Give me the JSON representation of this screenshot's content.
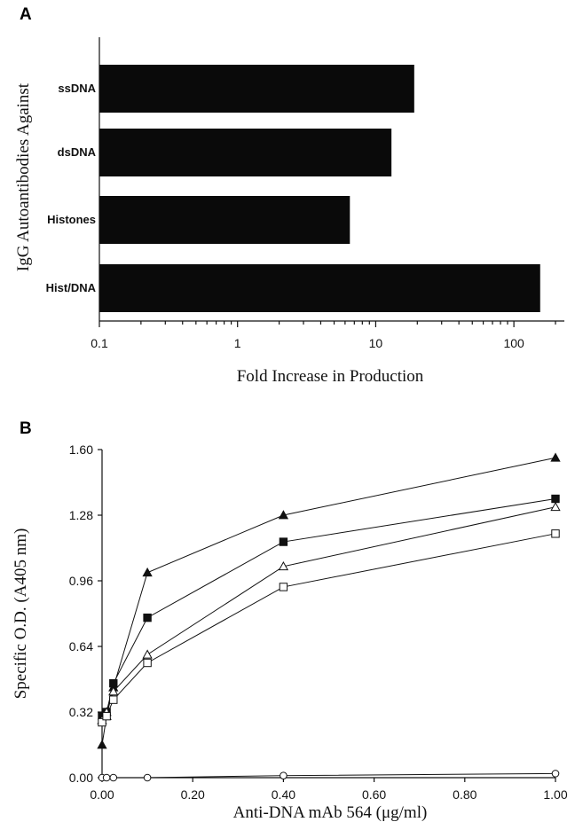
{
  "chart_data": [
    {
      "panel_label": "A",
      "type": "bar",
      "orientation": "horizontal",
      "x_scale": "log",
      "categories": [
        "ssDNA",
        "dsDNA",
        "Histones",
        "Hist/DNA"
      ],
      "values": [
        19,
        13,
        6.5,
        155
      ],
      "xlabel": "Fold Increase in Production",
      "ylabel": "IgG Autoantibodies Against",
      "xlim": [
        0.1,
        200
      ],
      "xticks": [
        {
          "value": 0.1,
          "label": "0.1"
        },
        {
          "value": 1,
          "label": "1"
        },
        {
          "value": 10,
          "label": "10"
        },
        {
          "value": 100,
          "label": "100"
        }
      ],
      "bar_color": "#0a0a0a"
    },
    {
      "panel_label": "B",
      "type": "line",
      "xlabel": "Anti-DNA mAb 564 (μg/ml)",
      "ylabel": "Specific O.D. (A405 nm)",
      "xlim": [
        0,
        1
      ],
      "ylim": [
        0,
        1.6
      ],
      "xticks": [
        "0.00",
        "0.20",
        "0.40",
        "0.60",
        "0.80",
        "1.00"
      ],
      "yticks": [
        "0.00",
        "0.32",
        "0.64",
        "0.96",
        "1.28",
        "1.60"
      ],
      "series": [
        {
          "marker": "filled-triangle",
          "x": [
            0,
            0.01,
            0.025,
            0.1,
            0.4,
            1.0
          ],
          "y": [
            0.16,
            0.3,
            0.44,
            1.0,
            1.28,
            1.56
          ]
        },
        {
          "marker": "filled-square",
          "x": [
            0,
            0.01,
            0.025,
            0.1,
            0.4,
            1.0
          ],
          "y": [
            0.3,
            0.32,
            0.46,
            0.78,
            1.15,
            1.36
          ]
        },
        {
          "marker": "open-triangle",
          "x": [
            0,
            0.01,
            0.025,
            0.1,
            0.4,
            1.0
          ],
          "y": [
            0.28,
            0.32,
            0.42,
            0.6,
            1.03,
            1.32
          ]
        },
        {
          "marker": "open-square",
          "x": [
            0,
            0.01,
            0.025,
            0.1,
            0.4,
            1.0
          ],
          "y": [
            0.27,
            0.3,
            0.38,
            0.56,
            0.93,
            1.19
          ]
        },
        {
          "marker": "open-circle",
          "x": [
            0,
            0.01,
            0.025,
            0.1,
            0.4,
            1.0
          ],
          "y": [
            0.0,
            0.0,
            0.0,
            0.0,
            0.01,
            0.02
          ]
        }
      ]
    }
  ]
}
